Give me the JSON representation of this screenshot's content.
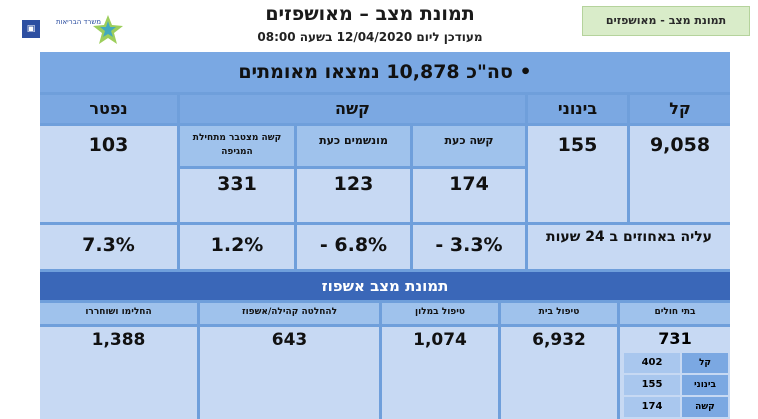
{
  "header": {
    "title": "תמונת מצב – מאושפזים",
    "subtitle": "מעודכן ליום 12/04/2020 בשעה 08:00",
    "tag": "תמונת מצב - מאושפזים",
    "logo_text": "משרד הבריאות"
  },
  "total": {
    "text": "• סה\"כ 10,878 נמצאו מאומתים"
  },
  "categories": {
    "mild": "קל",
    "moderate": "בינוני",
    "severe": "קשה",
    "deceased": "נפטר"
  },
  "severe_sub": {
    "current": "קשה כעת",
    "ventilated": "מונשמים כעת",
    "cumulative": "קשה מצטבר מתחילת המגיפה"
  },
  "values": {
    "mild": "9,058",
    "moderate": "155",
    "severe_current": "174",
    "ventilated": "123",
    "cumulative": "331",
    "deceased": "103"
  },
  "change": {
    "label": "עליה באחוזים ב 24 שעות",
    "severe_current": "- 3.3%",
    "ventilated": "- 6.8%",
    "cumulative": "1.2%",
    "deceased": "7.3%"
  },
  "hospitalization": {
    "title": "תמונת מצב אשפוז",
    "columns": {
      "hospitals": "בתי חולים",
      "home": "טיפול בית",
      "hotel": "טיפול במלון",
      "undecided": "להחלטה קהילה/אשפוז",
      "recovered": "החלימו ושוחררו"
    },
    "values": {
      "hospitals": "731",
      "home": "6,932",
      "hotel": "1,074",
      "undecided": "643",
      "recovered": "1,388"
    },
    "breakdown": [
      {
        "label": "קל",
        "value": "402"
      },
      {
        "label": "בינוני",
        "value": "155"
      },
      {
        "label": "קשה",
        "value": "174"
      }
    ]
  },
  "colors": {
    "panel": "#6f9fdb",
    "header_band": "#3a67b8",
    "cell": "#c7d9f3",
    "tag": "#d9ecc9"
  }
}
